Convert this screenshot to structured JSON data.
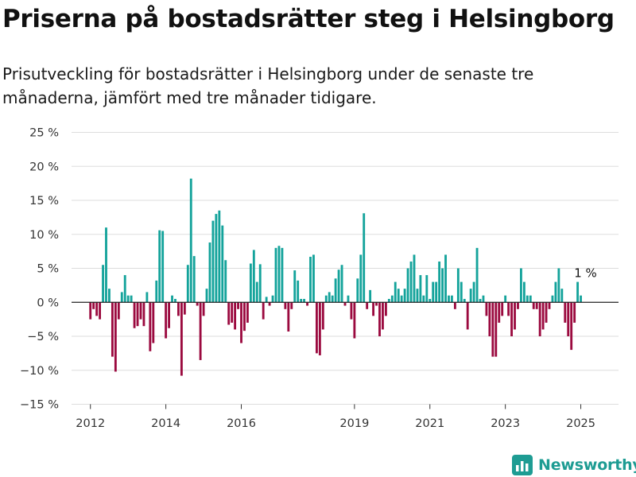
{
  "title": "Priserna på bostadsrätter steg i Helsingborg",
  "subtitle": "Prisutveckling för bostadsrätter i Helsingborg under de senaste tre månaderna, jämfört med tre månader tidigare.",
  "brand": {
    "name": "Newsworthy",
    "color": "#1e9c93"
  },
  "colors": {
    "positive": "#14a39b",
    "negative": "#9b0a3f",
    "grid": "#dddddd",
    "zero_line": "#222222"
  },
  "chart_data": {
    "type": "bar",
    "title": "Priserna på bostadsrätter steg i Helsingborg",
    "xlabel": "",
    "ylabel": "",
    "ylim": [
      -15,
      25
    ],
    "yticks": [
      -15,
      -10,
      -5,
      0,
      5,
      10,
      15,
      20,
      25
    ],
    "ytick_labels": [
      "−15 %",
      "−10 %",
      "−5 %",
      "0 %",
      "5 %",
      "10 %",
      "15 %",
      "20 %",
      "25 %"
    ],
    "xlim": [
      "2011-07",
      "2026-01"
    ],
    "xticks": [
      "2012",
      "2014",
      "2016",
      "2019",
      "2021",
      "2023",
      "2025"
    ],
    "grid": true,
    "legend": "none",
    "annotation": {
      "label": "1 %",
      "x": "2025-01",
      "y": 1
    },
    "x": [
      "2012-01",
      "2012-02",
      "2012-03",
      "2012-04",
      "2012-05",
      "2012-06",
      "2012-07",
      "2012-08",
      "2012-09",
      "2012-10",
      "2012-11",
      "2012-12",
      "2013-01",
      "2013-02",
      "2013-03",
      "2013-04",
      "2013-05",
      "2013-06",
      "2013-07",
      "2013-08",
      "2013-09",
      "2013-10",
      "2013-11",
      "2013-12",
      "2014-01",
      "2014-02",
      "2014-03",
      "2014-04",
      "2014-05",
      "2014-06",
      "2014-07",
      "2014-08",
      "2014-09",
      "2014-10",
      "2014-11",
      "2014-12",
      "2015-01",
      "2015-02",
      "2015-03",
      "2015-04",
      "2015-05",
      "2015-06",
      "2015-07",
      "2015-08",
      "2015-09",
      "2015-10",
      "2015-11",
      "2015-12",
      "2016-01",
      "2016-02",
      "2016-03",
      "2016-04",
      "2016-05",
      "2016-06",
      "2016-07",
      "2016-08",
      "2016-09",
      "2016-10",
      "2016-11",
      "2016-12",
      "2017-01",
      "2017-02",
      "2017-03",
      "2017-04",
      "2017-05",
      "2017-06",
      "2017-07",
      "2017-08",
      "2017-09",
      "2017-10",
      "2017-11",
      "2017-12",
      "2018-01",
      "2018-02",
      "2018-03",
      "2018-04",
      "2018-05",
      "2018-06",
      "2018-07",
      "2018-08",
      "2018-09",
      "2018-10",
      "2018-11",
      "2018-12",
      "2019-01",
      "2019-02",
      "2019-03",
      "2019-04",
      "2019-05",
      "2019-06",
      "2019-07",
      "2019-08",
      "2019-09",
      "2019-10",
      "2019-11",
      "2019-12",
      "2020-01",
      "2020-02",
      "2020-03",
      "2020-04",
      "2020-05",
      "2020-06",
      "2020-07",
      "2020-08",
      "2020-09",
      "2020-10",
      "2020-11",
      "2020-12",
      "2021-01",
      "2021-02",
      "2021-03",
      "2021-04",
      "2021-05",
      "2021-06",
      "2021-07",
      "2021-08",
      "2021-09",
      "2021-10",
      "2021-11",
      "2021-12",
      "2022-01",
      "2022-02",
      "2022-03",
      "2022-04",
      "2022-05",
      "2022-06",
      "2022-07",
      "2022-08",
      "2022-09",
      "2022-10",
      "2022-11",
      "2022-12",
      "2023-01",
      "2023-02",
      "2023-03",
      "2023-04",
      "2023-05",
      "2023-06",
      "2023-07",
      "2023-08",
      "2023-09",
      "2023-10",
      "2023-11",
      "2023-12",
      "2024-01",
      "2024-02",
      "2024-03",
      "2024-04",
      "2024-05",
      "2024-06",
      "2024-07",
      "2024-08",
      "2024-09",
      "2024-10",
      "2024-11",
      "2024-12",
      "2025-01",
      "2025-02"
    ],
    "series": [
      {
        "values": [
          -2.5,
          -1.0,
          -2.0,
          -2.5,
          5.5,
          11.0,
          2.0,
          -8.0,
          -10.2,
          -2.5,
          1.5,
          4.0,
          1.0,
          1.0,
          -3.8,
          -3.5,
          -2.5,
          -3.5,
          1.5,
          -7.2,
          -6.0,
          3.2,
          10.6,
          10.5,
          -5.3,
          -3.8,
          1.0,
          0.5,
          -2.0,
          -10.8,
          -1.8,
          5.5,
          18.2,
          6.8,
          -0.5,
          -8.5,
          -2.0,
          2.0,
          8.8,
          12.0,
          13.0,
          13.5,
          11.3,
          6.2,
          -3.3,
          -3.0,
          -4.0,
          -1.0,
          -6.0,
          -4.2,
          -3.0,
          5.7,
          7.7,
          3.0,
          5.6,
          -2.5,
          0.8,
          -0.5,
          1.0,
          8.0,
          8.3,
          8.0,
          -1.0,
          -4.3,
          -1.0,
          4.7,
          3.2,
          0.5,
          0.5,
          -0.5,
          6.7,
          7.0,
          -7.5,
          -7.8,
          -4.0,
          1.0,
          1.5,
          1.0,
          3.5,
          4.8,
          5.5,
          -0.5,
          1.0,
          -2.5,
          -5.3,
          3.5,
          7.0,
          13.1,
          -1.0,
          1.8,
          -2.0,
          -0.5,
          -5.0,
          -4.0,
          -2.0,
          0.5,
          1.0,
          3.0,
          2.0,
          1.0,
          2.0,
          5.0,
          6.0,
          7.0,
          2.0,
          4.0,
          1.0,
          4.0,
          0.5,
          3.0,
          3.0,
          6.0,
          5.0,
          7.0,
          1.0,
          1.0,
          -1.0,
          5.0,
          3.0,
          0.5,
          -4.0,
          2.0,
          3.0,
          8.0,
          0.5,
          1.0,
          -2.0,
          -5.0,
          -8.0,
          -8.0,
          -3.0,
          -2.0,
          1.0,
          -2.0,
          -5.0,
          -4.0,
          -1.0,
          5.0,
          3.0,
          1.0,
          1.0,
          -1.0,
          -1.0,
          -5.0,
          -4.0,
          -3.0,
          -1.0,
          1.0,
          3.0,
          5.0,
          2.0,
          -3.0,
          -5.0,
          -7.0,
          -3.0,
          3.0,
          1.0,
          0.0
        ]
      }
    ]
  }
}
